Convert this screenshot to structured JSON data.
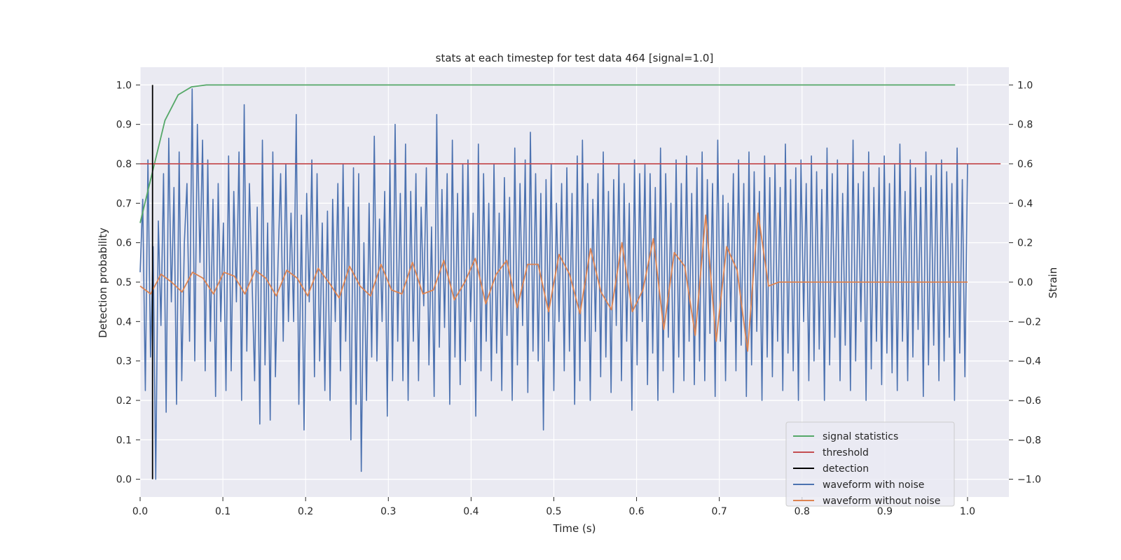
{
  "chart_data": {
    "type": "line",
    "title": "stats at each timestep for test data 464 [signal=1.0]",
    "xlabel": "Time (s)",
    "ylabel_left": "Detection probability",
    "ylabel_right": "Strain",
    "xlim": [
      0.0,
      1.05
    ],
    "ylim_left": [
      -0.045,
      1.045
    ],
    "ylim_right": [
      -1.09,
      1.09
    ],
    "xticks": [
      0.0,
      0.1,
      0.2,
      0.3,
      0.4,
      0.5,
      0.6,
      0.7,
      0.8,
      0.9,
      1.0
    ],
    "xtick_labels": [
      "0.0",
      "0.1",
      "0.2",
      "0.3",
      "0.4",
      "0.5",
      "0.6",
      "0.7",
      "0.8",
      "0.9",
      "1.0"
    ],
    "yticks_left": [
      0.0,
      0.1,
      0.2,
      0.3,
      0.4,
      0.5,
      0.6,
      0.7,
      0.8,
      0.9,
      1.0
    ],
    "ytick_labels_left": [
      "0.0",
      "0.1",
      "0.2",
      "0.3",
      "0.4",
      "0.5",
      "0.6",
      "0.7",
      "0.8",
      "0.9",
      "1.0"
    ],
    "yticks_right": [
      -1.0,
      -0.8,
      -0.6,
      -0.4,
      -0.2,
      0.0,
      0.2,
      0.4,
      0.6,
      0.8,
      1.0
    ],
    "ytick_labels_right": [
      "−1.0",
      "−0.8",
      "−0.6",
      "−0.4",
      "−0.2",
      "0.0",
      "0.2",
      "0.4",
      "0.6",
      "0.8",
      "1.0"
    ],
    "grid": true,
    "legend_position": "lower-right",
    "series": [
      {
        "name": "signal statistics",
        "axis": "left",
        "color": "#55a868",
        "x": [
          0.0,
          0.015,
          0.03,
          0.046,
          0.062,
          0.08,
          0.1,
          0.3,
          0.5,
          0.7,
          0.9,
          0.985
        ],
        "y": [
          0.65,
          0.78,
          0.91,
          0.975,
          0.995,
          1.0,
          1.0,
          1.0,
          1.0,
          1.0,
          1.0,
          1.0
        ]
      },
      {
        "name": "threshold",
        "axis": "left",
        "color": "#c44e52",
        "x": [
          0.0,
          1.04
        ],
        "y": [
          0.8,
          0.8
        ]
      },
      {
        "name": "detection",
        "axis": "left",
        "color": "#000000",
        "x": [
          0.015,
          0.015
        ],
        "y": [
          0.0,
          1.0
        ]
      },
      {
        "name": "waveform with noise",
        "axis": "right",
        "color": "#4c72b0",
        "x_range": [
          0.0,
          1.0
        ],
        "y": [
          0.05,
          0.42,
          -0.55,
          0.62,
          -0.38,
          0.18,
          -1.0,
          0.31,
          -0.22,
          0.55,
          -0.66,
          0.73,
          -0.1,
          0.48,
          -0.62,
          0.66,
          -0.5,
          0.2,
          0.5,
          -0.3,
          0.98,
          -0.4,
          0.8,
          0.1,
          0.72,
          -0.45,
          0.62,
          -0.3,
          0.42,
          -0.58,
          0.5,
          -0.2,
          0.3,
          -0.55,
          0.64,
          -0.45,
          0.46,
          -0.1,
          0.66,
          -0.6,
          0.9,
          -0.35,
          0.5,
          0.02,
          -0.5,
          0.38,
          -0.72,
          0.72,
          -0.42,
          0.3,
          -0.7,
          0.66,
          -0.48,
          0.1,
          0.55,
          -0.3,
          0.6,
          -0.2,
          0.35,
          -0.2,
          0.85,
          -0.62,
          0.34,
          -0.75,
          0.45,
          -0.1,
          0.62,
          -0.48,
          0.55,
          -0.4,
          0.3,
          -0.55,
          0.36,
          -0.6,
          0.42,
          -0.2,
          0.5,
          -0.45,
          0.6,
          -0.3,
          0.38,
          -0.8,
          0.58,
          -0.62,
          0.55,
          -0.96,
          0.2,
          -0.6,
          0.4,
          -0.38,
          0.74,
          -0.4,
          0.32,
          -0.2,
          0.46,
          -0.68,
          0.62,
          -0.5,
          0.8,
          -0.3,
          0.45,
          -0.5,
          0.7,
          -0.6,
          0.46,
          -0.3,
          0.55,
          -0.5,
          0.38,
          -0.12,
          0.58,
          -0.42,
          0.28,
          -0.58,
          0.85,
          -0.33,
          0.47,
          -0.23,
          0.55,
          -0.62,
          0.72,
          -0.38,
          0.45,
          -0.52,
          0.6,
          -0.4,
          0.62,
          -0.2,
          0.35,
          -0.68,
          0.7,
          -0.45,
          0.55,
          -0.3,
          0.4,
          -0.5,
          0.6,
          -0.36,
          0.35,
          -0.55,
          0.53,
          -0.27,
          0.43,
          -0.6,
          0.68,
          -0.42,
          0.5,
          -0.22,
          0.62,
          -0.56,
          0.76,
          -0.35,
          0.55,
          -0.4,
          0.45,
          -0.75,
          0.52,
          -0.3,
          0.6,
          -0.55,
          0.4,
          -0.2,
          0.5,
          -0.45,
          0.58,
          -0.35,
          0.45,
          -0.62,
          0.64,
          -0.5,
          0.72,
          -0.3,
          0.5,
          -0.6,
          0.42,
          -0.25,
          0.55,
          -0.48,
          0.66,
          -0.38,
          0.46,
          -0.56,
          0.52,
          -0.22,
          0.6,
          -0.5,
          0.5,
          -0.3,
          0.4,
          -0.65,
          0.62,
          -0.42,
          0.55,
          -0.2,
          0.6,
          -0.52,
          0.55,
          -0.36,
          0.48,
          -0.6,
          0.68,
          -0.45,
          0.55,
          -0.28,
          0.4,
          -0.56,
          0.62,
          -0.38,
          0.5,
          -0.5,
          0.64,
          -0.3,
          0.45,
          -0.52,
          0.58,
          -0.4,
          0.66,
          -0.5,
          0.52,
          -0.26,
          0.5,
          -0.58,
          0.72,
          -0.3,
          0.44,
          -0.5,
          0.4,
          -0.2,
          0.55,
          -0.45,
          0.62,
          -0.32,
          0.5,
          -0.58,
          0.66,
          -0.42,
          0.56,
          -0.25,
          0.46,
          -0.6,
          0.64,
          -0.38,
          0.53,
          -0.48,
          0.6,
          -0.3,
          0.48,
          -0.55,
          0.7,
          -0.36,
          0.52,
          -0.45,
          0.58,
          -0.6,
          0.62,
          -0.2,
          0.5,
          -0.5,
          0.64,
          -0.4,
          0.56,
          -0.34,
          0.47,
          -0.6,
          0.68,
          -0.42,
          0.55,
          -0.28,
          0.62,
          -0.5,
          0.45,
          -0.32,
          0.6,
          -0.55,
          0.72,
          -0.4,
          0.5,
          -0.2,
          0.56,
          -0.6,
          0.66,
          -0.44,
          0.48,
          -0.3,
          0.58,
          -0.52,
          0.64,
          -0.36,
          0.5,
          -0.46,
          0.6,
          -0.55,
          0.7,
          -0.3,
          0.46,
          -0.5,
          0.62,
          -0.38,
          0.58,
          -0.24,
          0.48,
          -0.58,
          0.66,
          -0.42,
          0.54,
          -0.32,
          0.6,
          -0.5,
          0.62,
          -0.4,
          0.56,
          -0.28,
          0.5,
          -0.6,
          0.68,
          -0.36,
          0.52,
          -0.48,
          0.6
        ],
        "y_sample_count_note": "visually estimated"
      },
      {
        "name": "waveform without noise",
        "axis": "right",
        "color": "#dd8452",
        "x_range": [
          0.0,
          1.0
        ],
        "y": [
          -0.02,
          -0.06,
          0.04,
          0.0,
          -0.05,
          0.05,
          0.02,
          -0.06,
          0.05,
          0.03,
          -0.06,
          0.06,
          0.02,
          -0.07,
          0.06,
          0.02,
          -0.07,
          0.07,
          0.0,
          -0.08,
          0.08,
          -0.02,
          -0.07,
          0.09,
          -0.04,
          -0.06,
          0.1,
          -0.06,
          -0.04,
          0.11,
          -0.09,
          0.0,
          0.12,
          -0.11,
          0.04,
          0.11,
          -0.13,
          0.09,
          0.09,
          -0.15,
          0.14,
          0.04,
          -0.16,
          0.17,
          -0.05,
          -0.14,
          0.2,
          -0.15,
          -0.04,
          0.22,
          -0.24,
          0.15,
          0.08,
          -0.27,
          0.34,
          -0.3,
          0.18,
          0.06,
          -0.35,
          0.35,
          -0.02,
          0.0,
          0.0,
          0.0,
          0.0,
          0.0,
          0.0,
          0.0,
          0.0,
          0.0,
          0.0,
          0.0,
          0.0,
          0.0,
          0.0,
          0.0,
          0.0,
          0.0,
          0.0,
          0.0
        ]
      }
    ]
  }
}
